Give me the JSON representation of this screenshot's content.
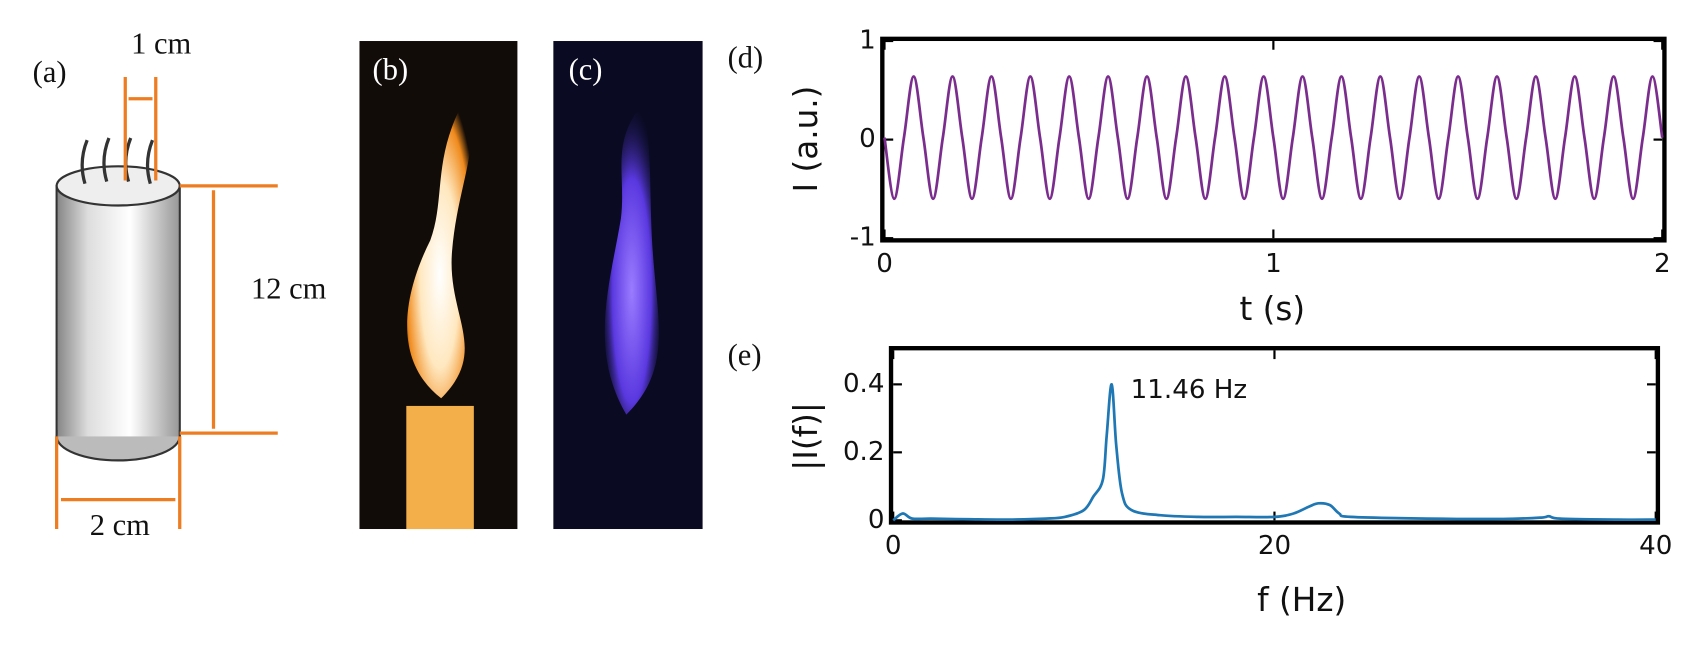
{
  "panels": {
    "a": {
      "label": "(a)",
      "top_width": "1 cm",
      "height": "12 cm",
      "diameter": "2 cm"
    },
    "b": {
      "label": "(b)"
    },
    "c": {
      "label": "(c)"
    }
  },
  "chart_data": [
    {
      "type": "line",
      "label": "(d)",
      "xlabel": "t (s)",
      "ylabel": "I (a.u.)",
      "xlim": [
        0,
        2
      ],
      "xticks": [
        0,
        1,
        2
      ],
      "ylim": [
        -1,
        1
      ],
      "yticks": [
        -1,
        0,
        1
      ],
      "x": [
        0,
        0.025,
        0.05,
        0.075,
        0.1,
        0.125,
        0.15,
        0.175,
        0.2,
        0.225,
        0.25,
        0.275,
        0.3,
        0.325,
        0.35,
        0.375,
        0.4,
        0.425,
        0.45,
        0.475,
        0.5,
        0.525,
        0.55,
        0.575,
        0.6,
        0.625,
        0.65,
        0.675,
        0.7,
        0.725,
        0.75,
        0.775,
        0.8,
        0.825,
        0.85,
        0.875,
        0.9,
        0.925,
        0.95,
        0.975,
        1,
        1.025,
        1.05,
        1.075,
        1.1,
        1.125,
        1.15,
        1.175,
        1.2,
        1.225,
        1.25,
        1.275,
        1.3,
        1.325,
        1.35,
        1.375,
        1.4,
        1.425,
        1.45,
        1.475,
        1.5,
        1.525,
        1.55,
        1.575,
        1.6,
        1.625,
        1.65,
        1.675,
        1.7,
        1.725,
        1.75,
        1.775,
        1.8,
        1.825,
        1.85,
        1.875,
        1.9,
        1.925,
        1.95,
        1.975,
        2
      ],
      "series": [
        {
          "color": "#7b2d8e",
          "values": [
            0.02,
            -0.6,
            0.02,
            0.64,
            0.02,
            -0.6,
            0.02,
            0.64,
            0.02,
            -0.6,
            0.02,
            0.64,
            0.02,
            -0.6,
            0.02,
            0.64,
            0.02,
            -0.6,
            0.02,
            0.64,
            0.02,
            -0.6,
            0.02,
            0.64,
            0.02,
            -0.6,
            0.02,
            0.64,
            0.02,
            -0.6,
            0.02,
            0.64,
            0.02,
            -0.6,
            0.02,
            0.64,
            0.02,
            -0.6,
            0.02,
            0.64,
            0.02,
            -0.6,
            0.02,
            0.64,
            0.02,
            -0.6,
            0.02,
            0.64,
            0.02,
            -0.6,
            0.02,
            0.64,
            0.02,
            -0.6,
            0.02,
            0.64,
            0.02,
            -0.6,
            0.02,
            0.64,
            0.02,
            -0.6,
            0.02,
            0.64,
            0.02,
            -0.6,
            0.02,
            0.64,
            0.02,
            -0.6,
            0.02,
            0.64,
            0.02,
            -0.6,
            0.02,
            0.64,
            0.02,
            -0.6,
            0.02,
            0.64,
            0.02
          ]
        }
      ]
    },
    {
      "type": "line",
      "label": "(e)",
      "xlabel": "f (Hz)",
      "ylabel": "|I(f)|",
      "xlim": [
        0,
        40
      ],
      "xticks": [
        0,
        20,
        40
      ],
      "ylim": [
        0,
        0.5
      ],
      "yticks": [
        0,
        0.2,
        0.4
      ],
      "annotation": "11.46 Hz",
      "x": [
        0,
        0.5,
        1,
        2,
        4,
        6,
        8,
        9,
        10,
        10.5,
        11,
        11.2,
        11.46,
        11.7,
        12,
        12.5,
        14,
        16,
        18,
        20,
        21,
        21.8,
        22.3,
        22.9,
        23.4,
        24,
        28,
        32,
        34,
        34.4,
        35,
        38,
        40
      ],
      "series": [
        {
          "color": "#1f77b4",
          "values": [
            0,
            0.02,
            0.005,
            0.005,
            0.003,
            0.002,
            0.005,
            0.01,
            0.03,
            0.07,
            0.12,
            0.25,
            0.4,
            0.22,
            0.08,
            0.03,
            0.015,
            0.01,
            0.01,
            0.01,
            0.02,
            0.04,
            0.05,
            0.045,
            0.02,
            0.01,
            0.005,
            0.004,
            0.008,
            0.012,
            0.005,
            0.002,
            0.002
          ]
        }
      ]
    }
  ]
}
